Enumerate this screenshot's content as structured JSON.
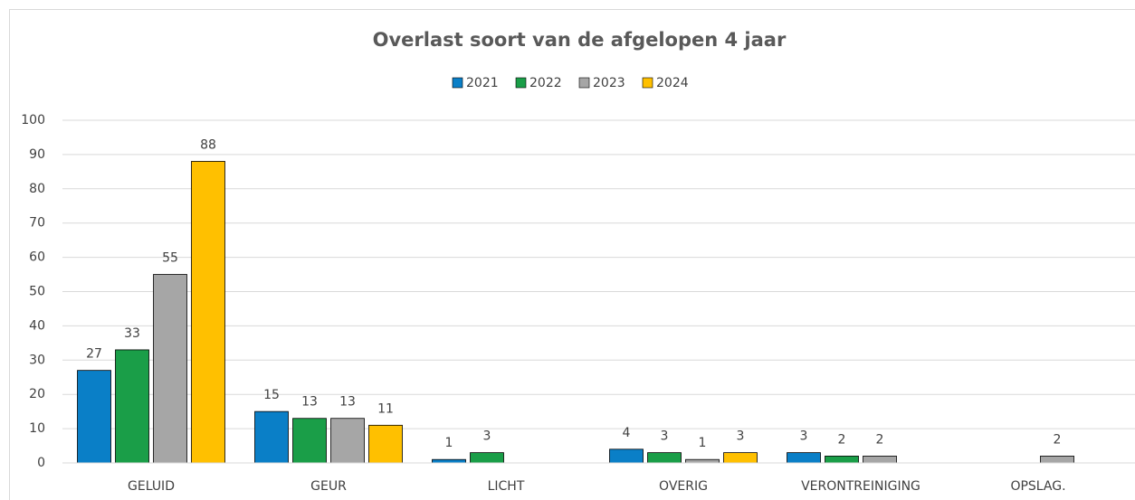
{
  "chart_data": {
    "type": "bar",
    "title": "Overlast soort van de afgelopen 4 jaar",
    "categories": [
      "GELUID",
      "GEUR",
      "LICHT",
      "OVERIG",
      "VERONTREINIGING",
      "OPSLAG."
    ],
    "series": [
      {
        "name": "2021",
        "color": "#0a7fc7",
        "values": [
          27,
          15,
          1,
          4,
          3,
          null
        ]
      },
      {
        "name": "2022",
        "color": "#1a9e48",
        "values": [
          33,
          13,
          3,
          3,
          2,
          null
        ]
      },
      {
        "name": "2023",
        "color": "#a6a6a6",
        "values": [
          55,
          13,
          null,
          1,
          2,
          2
        ]
      },
      {
        "name": "2024",
        "color": "#ffc000",
        "values": [
          88,
          11,
          null,
          3,
          null,
          null
        ]
      }
    ],
    "ylim": [
      0,
      100
    ],
    "yticks": [
      0,
      10,
      20,
      30,
      40,
      50,
      60,
      70,
      80,
      90,
      100
    ],
    "grid": true,
    "legend": "top"
  }
}
